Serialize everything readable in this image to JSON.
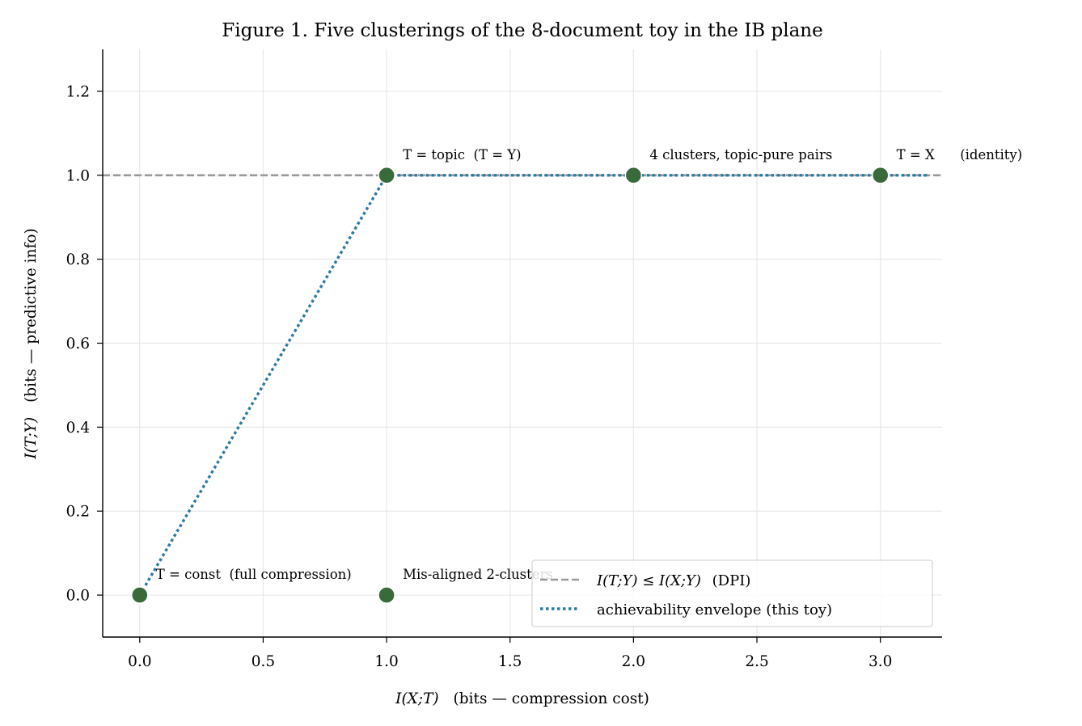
{
  "chart_data": {
    "type": "scatter",
    "title": "Figure 1. Five clusterings of the 8-document toy in the IB plane",
    "xlabel": {
      "math": "I(X;T)",
      "text": "(bits — compression cost)"
    },
    "ylabel": {
      "math": "I(T;Y)",
      "text": "(bits — predictive info)"
    },
    "xlim": [
      -0.15,
      3.25
    ],
    "ylim": [
      -0.1,
      1.3
    ],
    "xticks": [
      "0.0",
      "0.5",
      "1.0",
      "1.5",
      "2.0",
      "2.5",
      "3.0"
    ],
    "yticks": [
      "0.0",
      "0.2",
      "0.4",
      "0.6",
      "0.8",
      "1.0",
      "1.2"
    ],
    "grid": true,
    "points": [
      {
        "x": 0,
        "y": 0,
        "label": "T = const  (full compression)"
      },
      {
        "x": 1,
        "y": 0,
        "label": "Mis-aligned 2-clusters"
      },
      {
        "x": 1,
        "y": 1,
        "label": "T = topic  (T = Y)"
      },
      {
        "x": 2,
        "y": 1,
        "label": "4 clusters, topic-pure pairs"
      },
      {
        "x": 3,
        "y": 1,
        "label": "T = X      (identity)"
      }
    ],
    "dpi_bound": {
      "y": 1.0
    },
    "envelope": {
      "x": [
        0,
        1,
        3.2
      ],
      "y": [
        0,
        1,
        1
      ]
    },
    "legend": {
      "placement": "lower-right",
      "entries": [
        {
          "math": "I(T;Y) ≤ I(X;Y)",
          "text": "(DPI)"
        },
        {
          "text": "achievability envelope (this toy)"
        }
      ]
    },
    "colors": {
      "points": "#386a3a",
      "dpi": "#999999",
      "envelope": "#2b7aa0",
      "grid": "#e8e8e8"
    }
  }
}
